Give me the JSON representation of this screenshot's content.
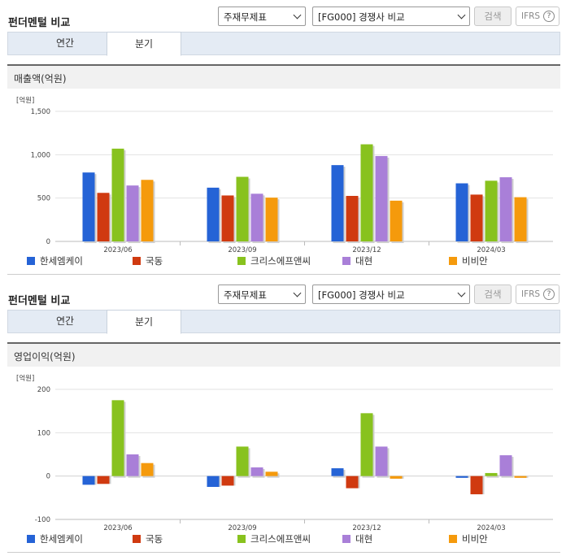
{
  "header": {
    "title": "펀더멘털 비교",
    "select_subject": "주재무제표",
    "select_peer": "[FG000] 경쟁사 비교",
    "search_label": "검색",
    "ifrs_label": "IFRS",
    "help_glyph": "?"
  },
  "tabs": [
    "연간",
    "분기"
  ],
  "active_tab_index": 1,
  "colors": {
    "한세엠케이": "#2563d6",
    "국동": "#d03a10",
    "크리스에프앤씨": "#88c21e",
    "대현": "#a97fd8",
    "비비안": "#f59a0c"
  },
  "icons": [
    "chevron-down-icon",
    "help-icon"
  ],
  "chart_data": [
    {
      "type": "bar",
      "title": "매출액(억원)",
      "unit_label": "[억원]",
      "categories": [
        "2023/06",
        "2023/09",
        "2023/12",
        "2024/03"
      ],
      "ylim": [
        0,
        1500
      ],
      "yticks": [
        "1,500",
        "1,000",
        "500",
        "0"
      ],
      "ytick_values": [
        1500,
        1000,
        500,
        0
      ],
      "series": [
        {
          "name": "한세엠케이",
          "color": "#2563d6",
          "values": [
            795,
            620,
            880,
            670
          ]
        },
        {
          "name": "국동",
          "color": "#d03a10",
          "values": [
            560,
            530,
            525,
            540
          ]
        },
        {
          "name": "크리스에프앤씨",
          "color": "#88c21e",
          "values": [
            1070,
            745,
            1120,
            700
          ]
        },
        {
          "name": "대현",
          "color": "#a97fd8",
          "values": [
            645,
            550,
            985,
            740
          ]
        },
        {
          "name": "비비안",
          "color": "#f59a0c",
          "values": [
            710,
            505,
            470,
            510
          ]
        }
      ]
    },
    {
      "type": "bar",
      "title": "영업이익(억원)",
      "unit_label": "[억원]",
      "categories": [
        "2023/06",
        "2023/09",
        "2023/12",
        "2024/03"
      ],
      "ylim": [
        -100,
        200
      ],
      "yticks": [
        "200",
        "100",
        "0",
        "-100"
      ],
      "ytick_values": [
        200,
        100,
        0,
        -100
      ],
      "series": [
        {
          "name": "한세엠케이",
          "color": "#2563d6",
          "values": [
            -20,
            -25,
            18,
            -4
          ]
        },
        {
          "name": "국동",
          "color": "#d03a10",
          "values": [
            -18,
            -22,
            -28,
            -42
          ]
        },
        {
          "name": "크리스에프앤씨",
          "color": "#88c21e",
          "values": [
            175,
            68,
            145,
            7
          ]
        },
        {
          "name": "대현",
          "color": "#a97fd8",
          "values": [
            50,
            20,
            68,
            48
          ]
        },
        {
          "name": "비비안",
          "color": "#f59a0c",
          "values": [
            30,
            10,
            -6,
            -4
          ]
        }
      ]
    }
  ]
}
